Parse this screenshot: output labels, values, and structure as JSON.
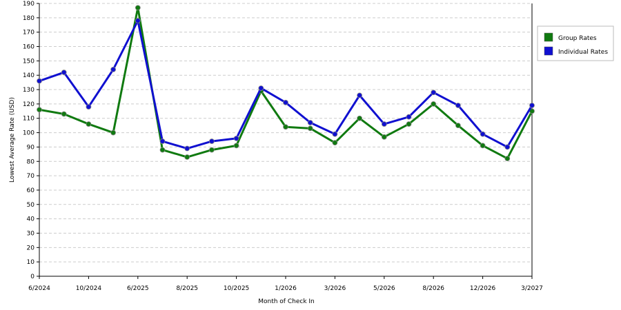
{
  "chart_data": {
    "type": "line",
    "x_label": "Month of Check In",
    "y_label": "Lowest Average Rate (USD)",
    "categories": [
      "6/2024",
      null,
      "10/2024",
      null,
      "6/2025",
      null,
      "8/2025",
      null,
      "10/2025",
      null,
      "1/2026",
      null,
      "3/2026",
      null,
      "5/2026",
      null,
      "8/2026",
      null,
      "12/2026",
      null,
      "3/2027"
    ],
    "series": [
      {
        "name": "Group Rates",
        "color": "#107a10",
        "values": [
          116,
          113,
          106,
          100,
          187,
          88,
          83,
          88,
          91,
          129,
          104,
          103,
          93,
          110,
          97,
          106,
          120,
          105,
          91,
          82,
          115
        ]
      },
      {
        "name": "Individual Rates",
        "color": "#1010d0",
        "values": [
          136,
          142,
          118,
          144,
          178,
          94,
          89,
          94,
          96,
          131,
          121,
          107,
          99,
          126,
          106,
          111,
          128,
          119,
          99,
          90,
          119
        ]
      }
    ],
    "ylim": [
      0,
      190
    ],
    "yticks": [
      0,
      10,
      20,
      30,
      40,
      50,
      60,
      70,
      80,
      90,
      100,
      110,
      120,
      130,
      140,
      150,
      160,
      170,
      180,
      190
    ],
    "grid": true,
    "legend": "right"
  }
}
